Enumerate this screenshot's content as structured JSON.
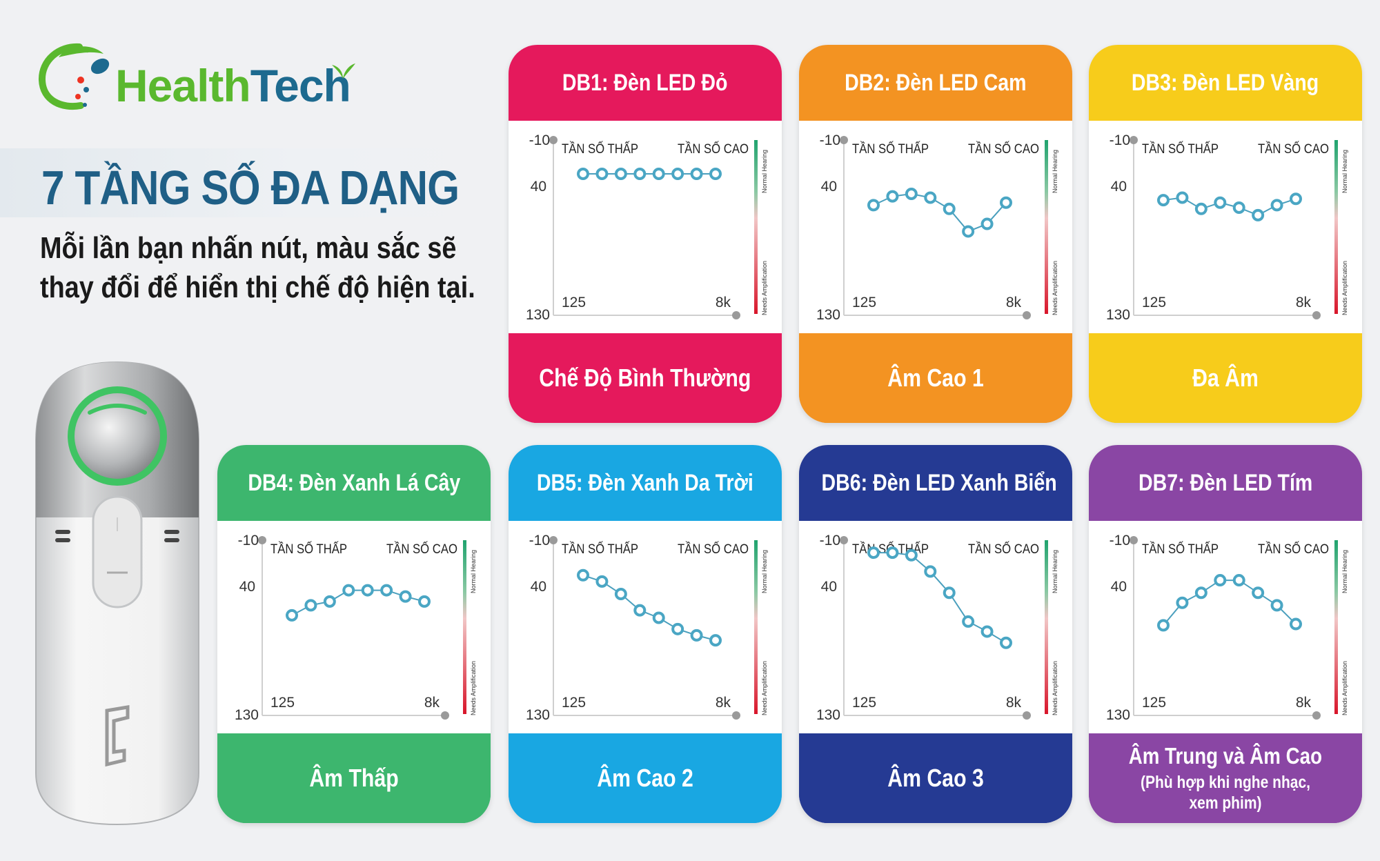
{
  "brand": {
    "part1": "Health",
    "part2": "Tech"
  },
  "headline": "7 TẦNG SỐ ĐA DẠNG",
  "subline": [
    "Mỗi lần bạn nhấn nút, màu sắc sẽ",
    "thay đổi để hiển thị chế độ hiện tại."
  ],
  "chart_common": {
    "y_labels": [
      "-10",
      "40",
      "130"
    ],
    "x_labels": [
      "125",
      "8k"
    ],
    "low_freq": "TẦN SỐ THẤP",
    "high_freq": "TẦN SỐ CAO",
    "normal_hearing": "Normal Hearing",
    "needs_amp": "Needs Amplification"
  },
  "chart_data": [
    {
      "type": "line",
      "title": "DB1: Đèn LED Đỏ",
      "mode": "Chế Độ Bình Thường",
      "mode_sub": "",
      "color": "#e5195c",
      "ylim": [
        -10,
        130
      ],
      "x": [
        1,
        2,
        3,
        4,
        5,
        6,
        7,
        8
      ],
      "values": [
        17,
        17,
        17,
        17,
        17,
        17,
        17,
        17
      ]
    },
    {
      "type": "line",
      "title": "DB2: Đèn LED Cam",
      "mode": "Âm Cao 1",
      "mode_sub": "",
      "color": "#f39322",
      "ylim": [
        -10,
        130
      ],
      "x": [
        1,
        2,
        3,
        4,
        5,
        6,
        7,
        8
      ],
      "values": [
        42,
        35,
        33,
        36,
        45,
        63,
        57,
        40
      ]
    },
    {
      "type": "line",
      "title": "DB3: Đèn LED Vàng",
      "mode": "Đa Âm",
      "mode_sub": "",
      "color": "#f7cc1b",
      "ylim": [
        -10,
        130
      ],
      "x": [
        1,
        2,
        3,
        4,
        5,
        6,
        7,
        8
      ],
      "values": [
        38,
        36,
        45,
        40,
        44,
        50,
        42,
        37
      ]
    },
    {
      "type": "line",
      "title": "DB4: Đèn Xanh Lá Cây",
      "mode": "Âm Thấp",
      "mode_sub": "",
      "color": "#3db66e",
      "ylim": [
        -10,
        130
      ],
      "x": [
        1,
        2,
        3,
        4,
        5,
        6,
        7,
        8
      ],
      "values": [
        50,
        42,
        39,
        30,
        30,
        30,
        35,
        39
      ]
    },
    {
      "type": "line",
      "title": "DB5: Đèn Xanh Da Trời",
      "mode": "Âm Cao 2",
      "mode_sub": "",
      "color": "#19a7e2",
      "ylim": [
        -10,
        130
      ],
      "x": [
        1,
        2,
        3,
        4,
        5,
        6,
        7,
        8
      ],
      "values": [
        18,
        23,
        33,
        46,
        52,
        61,
        66,
        70
      ]
    },
    {
      "type": "line",
      "title": "DB6: Đèn LED Xanh Biển",
      "mode": "Âm Cao 3",
      "mode_sub": "",
      "color": "#253a93",
      "ylim": [
        -10,
        130
      ],
      "x": [
        1,
        2,
        3,
        4,
        5,
        6,
        7,
        8
      ],
      "values": [
        0,
        0,
        2,
        15,
        32,
        55,
        63,
        72
      ]
    },
    {
      "type": "line",
      "title": "DB7: Đèn LED Tím",
      "mode": "Âm Trung và  Âm Cao",
      "mode_sub": "(Phù hợp khi nghe nhạc, xem phim)",
      "color": "#8a46a4",
      "ylim": [
        -10,
        130
      ],
      "x": [
        1,
        2,
        3,
        4,
        5,
        6,
        7,
        8
      ],
      "values": [
        58,
        40,
        32,
        22,
        22,
        32,
        42,
        57
      ]
    }
  ]
}
